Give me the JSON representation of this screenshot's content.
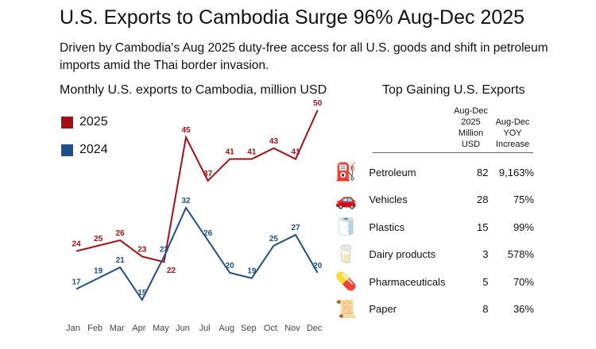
{
  "title": "U.S. Exports to Cambodia Surge 96% Aug-Dec 2025",
  "subtitle": "Driven by Cambodia's Aug 2025 duty-free access for all U.S. goods and shift in petroleum imports amid the Thai border invasion.",
  "chart_data": {
    "type": "line",
    "title": "Monthly U.S. exports to Cambodia, million USD",
    "categories": [
      "Jan",
      "Feb",
      "Mar",
      "Apr",
      "May",
      "Jun",
      "Jul",
      "Aug",
      "Sep",
      "Oct",
      "Nov",
      "Dec"
    ],
    "series": [
      {
        "name": "2025",
        "color": "#a50f15",
        "values": [
          24,
          25,
          26,
          23,
          22,
          45,
          37,
          41,
          41,
          43,
          41,
          50
        ]
      },
      {
        "name": "2024",
        "color": "#1f4e8c",
        "values": [
          17,
          19,
          21,
          15,
          23,
          32,
          26,
          20,
          19,
          25,
          27,
          20
        ]
      }
    ],
    "grid": false,
    "legend": "top-left"
  },
  "table": {
    "title": "Top Gaining U.S. Exports",
    "headers": [
      "Aug-Dec 2025 Million USD",
      "Aug-Dec YOY Increase"
    ],
    "header_lines": [
      [
        "Aug-Dec",
        "2025",
        "Million",
        "USD"
      ],
      [
        "Aug-Dec",
        "YOY",
        "Increase"
      ]
    ],
    "rows": [
      {
        "icon": "fuel-nozzle-icon",
        "glyph": "⛽",
        "name": "Petroleum",
        "value": "82",
        "yoy": "9,163%"
      },
      {
        "icon": "car-icon",
        "glyph": "🚗",
        "name": "Vehicles",
        "value": "28",
        "yoy": "75%"
      },
      {
        "icon": "plastic-rolls-icon",
        "glyph": "🧻",
        "name": "Plastics",
        "value": "15",
        "yoy": "99%"
      },
      {
        "icon": "milk-icon",
        "glyph": "🥛",
        "name": "Dairy products",
        "value": "3",
        "yoy": "578%"
      },
      {
        "icon": "pills-icon",
        "glyph": "💊",
        "name": "Pharmaceuticals",
        "value": "5",
        "yoy": "70%"
      },
      {
        "icon": "paper-roll-icon",
        "glyph": "📜",
        "name": "Paper",
        "value": "8",
        "yoy": "36%"
      }
    ]
  }
}
